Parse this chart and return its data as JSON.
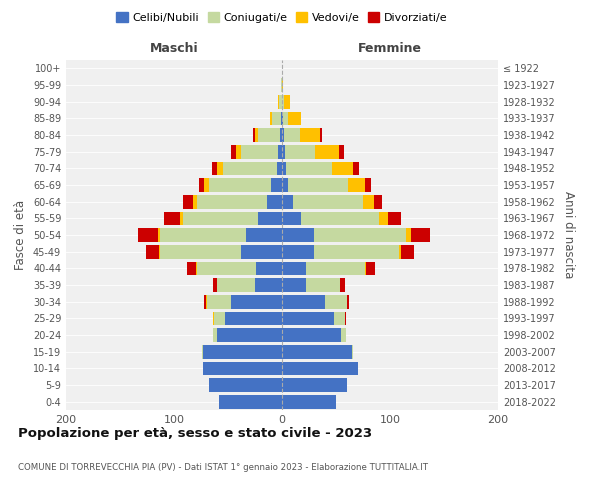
{
  "age_groups": [
    "0-4",
    "5-9",
    "10-14",
    "15-19",
    "20-24",
    "25-29",
    "30-34",
    "35-39",
    "40-44",
    "45-49",
    "50-54",
    "55-59",
    "60-64",
    "65-69",
    "70-74",
    "75-79",
    "80-84",
    "85-89",
    "90-94",
    "95-99",
    "100+"
  ],
  "birth_years": [
    "2018-2022",
    "2013-2017",
    "2008-2012",
    "2003-2007",
    "1998-2002",
    "1993-1997",
    "1988-1992",
    "1983-1987",
    "1978-1982",
    "1973-1977",
    "1968-1972",
    "1963-1967",
    "1958-1962",
    "1953-1957",
    "1948-1952",
    "1943-1947",
    "1938-1942",
    "1933-1937",
    "1928-1932",
    "1923-1927",
    "≤ 1922"
  ],
  "maschi": {
    "celibi": [
      58,
      68,
      73,
      73,
      60,
      53,
      47,
      25,
      24,
      38,
      33,
      22,
      14,
      10,
      5,
      4,
      2,
      1,
      0,
      0,
      0
    ],
    "coniugati": [
      0,
      0,
      0,
      1,
      4,
      10,
      22,
      35,
      55,
      75,
      80,
      70,
      65,
      58,
      50,
      34,
      20,
      8,
      3,
      1,
      0
    ],
    "vedovi": [
      0,
      0,
      0,
      0,
      0,
      1,
      1,
      0,
      1,
      1,
      2,
      2,
      3,
      4,
      5,
      5,
      3,
      2,
      1,
      0,
      0
    ],
    "divorziati": [
      0,
      0,
      0,
      0,
      0,
      0,
      2,
      4,
      8,
      12,
      18,
      15,
      10,
      5,
      5,
      4,
      2,
      0,
      0,
      0,
      0
    ]
  },
  "femmine": {
    "nubili": [
      50,
      60,
      70,
      65,
      55,
      48,
      40,
      22,
      22,
      30,
      30,
      18,
      10,
      6,
      4,
      3,
      2,
      1,
      0,
      0,
      0
    ],
    "coniugate": [
      0,
      0,
      0,
      1,
      4,
      10,
      20,
      32,
      55,
      78,
      85,
      72,
      65,
      55,
      42,
      28,
      15,
      5,
      2,
      0,
      0
    ],
    "vedove": [
      0,
      0,
      0,
      0,
      0,
      0,
      0,
      0,
      1,
      2,
      4,
      8,
      10,
      16,
      20,
      22,
      18,
      12,
      5,
      1,
      0
    ],
    "divorziate": [
      0,
      0,
      0,
      0,
      0,
      1,
      2,
      4,
      8,
      12,
      18,
      12,
      8,
      5,
      5,
      4,
      2,
      0,
      0,
      0,
      0
    ]
  },
  "colors": {
    "celibi_nubili": "#4472c4",
    "coniugati_e": "#c5d9a0",
    "vedovi_e": "#ffc000",
    "divorziati_e": "#cc0000"
  },
  "xlim": [
    -200,
    200
  ],
  "xticks": [
    -200,
    -100,
    0,
    100,
    200
  ],
  "xticklabels": [
    "200",
    "100",
    "0",
    "100",
    "200"
  ],
  "title": "Popolazione per età, sesso e stato civile - 2023",
  "subtitle": "COMUNE DI TORREVECCHIA PIA (PV) - Dati ISTAT 1° gennaio 2023 - Elaborazione TUTTITALIA.IT",
  "ylabel_left": "Fasce di età",
  "ylabel_right": "Anni di nascita",
  "legend_labels": [
    "Celibi/Nubili",
    "Coniugati/e",
    "Vedovi/e",
    "Divorziati/e"
  ],
  "maschi_label": "Maschi",
  "femmine_label": "Femmine",
  "bg_color": "#ffffff",
  "plot_bg_color": "#f0f0f0"
}
